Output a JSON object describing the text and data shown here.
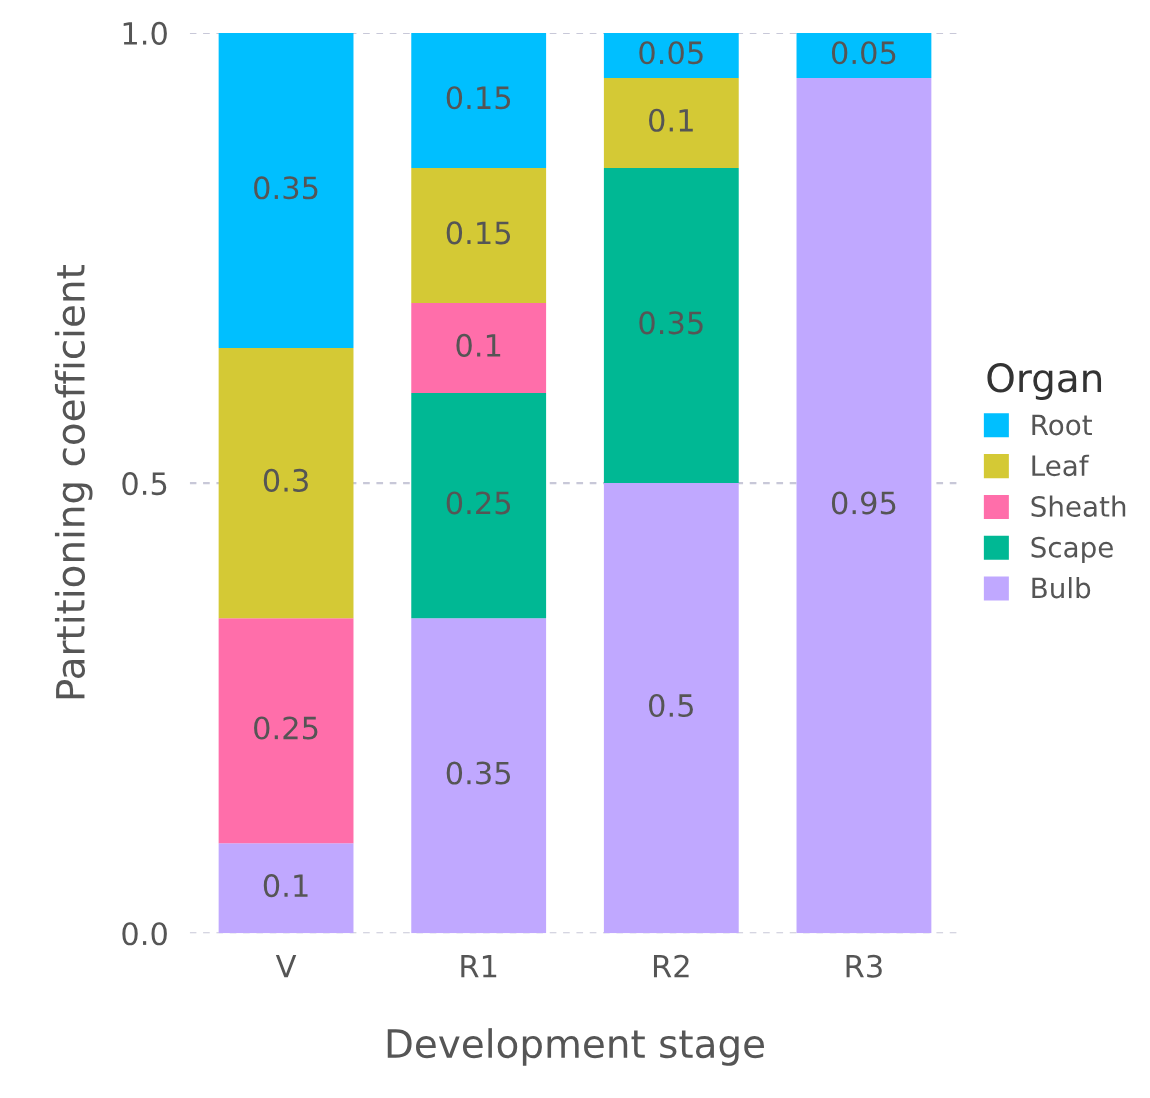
{
  "chart_data": {
    "type": "bar",
    "stacked": true,
    "xlabel": "Development stage",
    "ylabel": "Partitioning coefficient",
    "legend_title": "Organ",
    "legend": "right",
    "grid": true,
    "data_labels": true,
    "categories": [
      "V",
      "R1",
      "R2",
      "R3"
    ],
    "ylim": [
      0,
      1
    ],
    "yticks": [
      {
        "value": 0,
        "label": "0.0"
      },
      {
        "value": 0.5,
        "label": "0.5"
      },
      {
        "value": 1,
        "label": "1.0"
      }
    ],
    "series": [
      {
        "name": "Bulb",
        "color": "#c0a8ff",
        "values": [
          0.1,
          0.35,
          0.5,
          0.95
        ]
      },
      {
        "name": "Scape",
        "color": "#00b894",
        "values": [
          null,
          0.25,
          0.35,
          null
        ]
      },
      {
        "name": "Sheath",
        "color": "#ff6eaa",
        "values": [
          0.25,
          0.1,
          null,
          null
        ]
      },
      {
        "name": "Leaf",
        "color": "#d4c935",
        "values": [
          0.3,
          0.15,
          0.1,
          null
        ]
      },
      {
        "name": "Root",
        "color": "#00bfff",
        "values": [
          0.35,
          0.15,
          0.05,
          0.05
        ]
      }
    ]
  }
}
